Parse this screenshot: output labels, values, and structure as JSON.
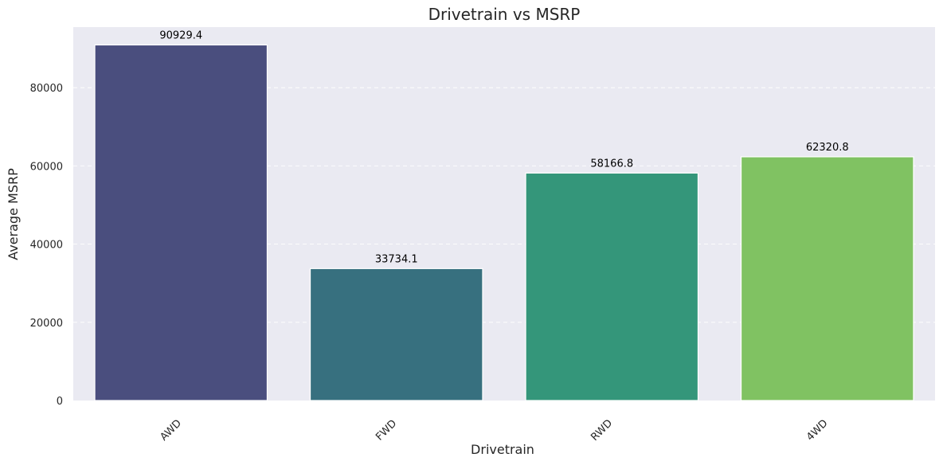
{
  "chart_data": {
    "type": "bar",
    "title": "Drivetrain vs MSRP",
    "xlabel": "Drivetrain",
    "ylabel": "Average MSRP",
    "categories": [
      "AWD",
      "FWD",
      "RWD",
      "4WD"
    ],
    "values": [
      90929.4,
      33734.1,
      58166.8,
      62320.8
    ],
    "value_labels": [
      "90929.4",
      "33734.1",
      "58166.8",
      "62320.8"
    ],
    "colors": [
      "#4a4e7e",
      "#37707f",
      "#34967a",
      "#80c262"
    ],
    "y_ticks": [
      0,
      20000,
      40000,
      60000,
      80000
    ],
    "y_tick_labels": [
      "0",
      "20000",
      "40000",
      "60000",
      "80000"
    ],
    "ylim": [
      0,
      95500
    ],
    "grid": "y-dashed",
    "background": "#eaeaf2"
  }
}
